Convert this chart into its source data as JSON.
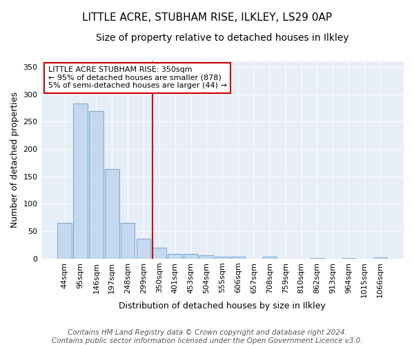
{
  "title1": "LITTLE ACRE, STUBHAM RISE, ILKLEY, LS29 0AP",
  "title2": "Size of property relative to detached houses in Ilkley",
  "xlabel": "Distribution of detached houses by size in Ilkley",
  "ylabel": "Number of detached properties",
  "categories": [
    "44sqm",
    "95sqm",
    "146sqm",
    "197sqm",
    "248sqm",
    "299sqm",
    "350sqm",
    "401sqm",
    "453sqm",
    "504sqm",
    "555sqm",
    "606sqm",
    "657sqm",
    "708sqm",
    "759sqm",
    "810sqm",
    "862sqm",
    "913sqm",
    "964sqm",
    "1015sqm",
    "1066sqm"
  ],
  "values": [
    65,
    283,
    270,
    163,
    65,
    36,
    20,
    8,
    9,
    6,
    4,
    3,
    0,
    3,
    0,
    0,
    1,
    0,
    1,
    0,
    2
  ],
  "bar_color": "#c5d8ee",
  "bar_edge_color": "#7aadd4",
  "vline_color": "#cc0000",
  "vline_x_index": 6,
  "annotation_line1": "LITTLE ACRE STUBHAM RISE: 350sqm",
  "annotation_line2": "← 95% of detached houses are smaller (878)",
  "annotation_line3": "5% of semi-detached houses are larger (44) →",
  "annotation_box_facecolor": "#ffffff",
  "annotation_box_edgecolor": "#cc0000",
  "footer_line1": "Contains HM Land Registry data © Crown copyright and database right 2024.",
  "footer_line2": "Contains public sector information licensed under the Open Government Licence v3.0.",
  "ylim": [
    0,
    360
  ],
  "yticks": [
    0,
    50,
    100,
    150,
    200,
    250,
    300,
    350
  ],
  "axes_facecolor": "#e8eef8",
  "grid_color": "#ffffff",
  "title1_fontsize": 11,
  "title2_fontsize": 10,
  "tick_fontsize": 8,
  "xlabel_fontsize": 9,
  "ylabel_fontsize": 9,
  "annotation_fontsize": 8,
  "footer_fontsize": 7.5
}
